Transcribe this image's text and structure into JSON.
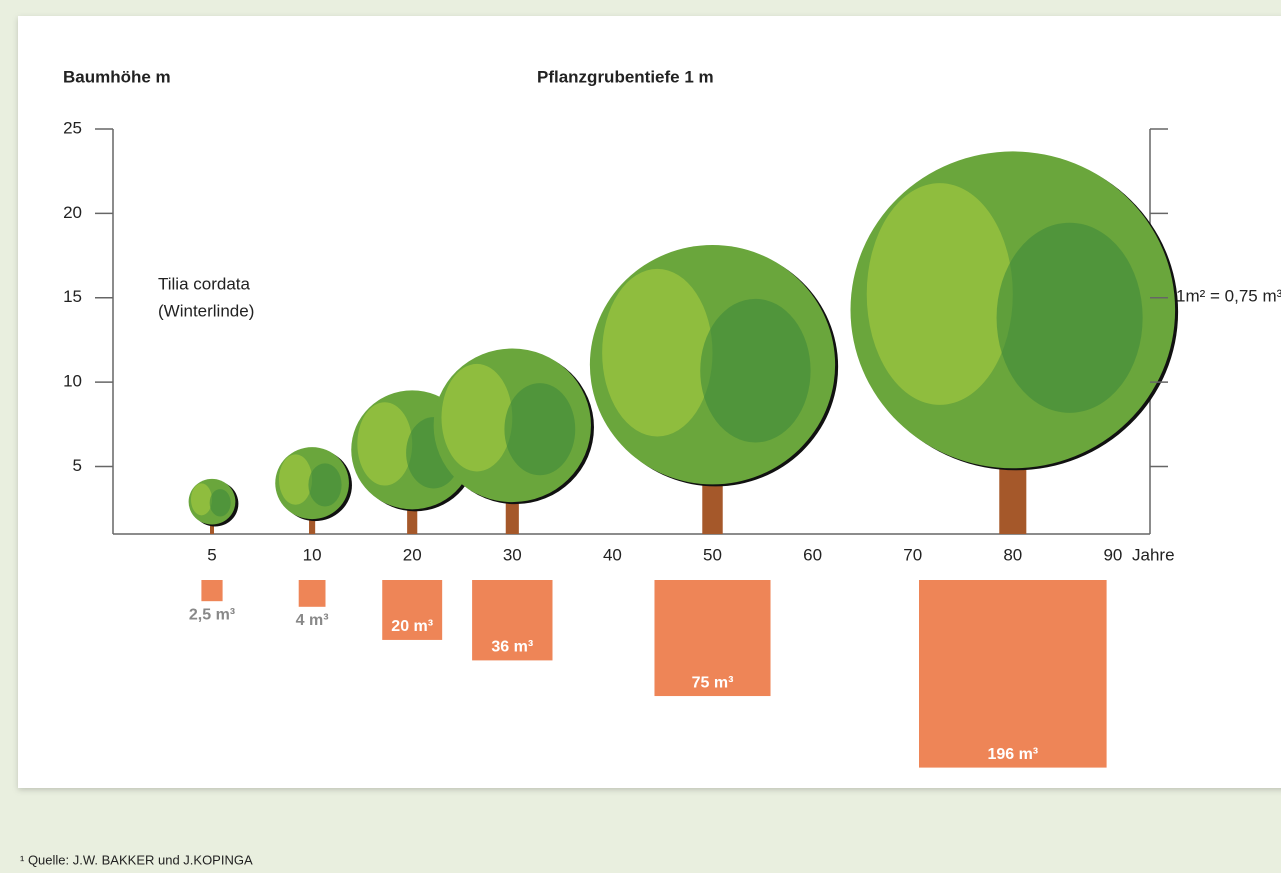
{
  "chart_data": {
    "type": "tree-growth",
    "title": "Pflanzgrubentiefe 1 m",
    "y_label": "Baumhöhe m",
    "x_unit": "Jahre",
    "categories": [
      5,
      10,
      20,
      30,
      40,
      50,
      60,
      70,
      80,
      90
    ],
    "ylim": [
      1,
      25
    ],
    "yticks": [
      5,
      10,
      15,
      20,
      25
    ],
    "annotation": [
      "Tilia cordata",
      "(Winterlinde)"
    ],
    "right_note": "1m² = 0,75 m³",
    "trees": {
      "x": [
        5,
        10,
        20,
        30,
        50,
        80
      ],
      "heights": [
        4.3,
        6.2,
        9.6,
        12.1,
        18.3,
        23.9
      ],
      "volumes": [
        2.5,
        4,
        20,
        36,
        75,
        196
      ],
      "volume_labels": [
        "2,5 m³",
        "4 m³",
        "20 m³",
        "36 m³",
        "75 m³",
        "196 m³"
      ],
      "crown_color": "#6aa63c",
      "trunk_color": "#a5582a",
      "box_color": "#ee8557"
    }
  },
  "footnote": "¹ Quelle: J.W. BAKKER und J.KOPINGA"
}
